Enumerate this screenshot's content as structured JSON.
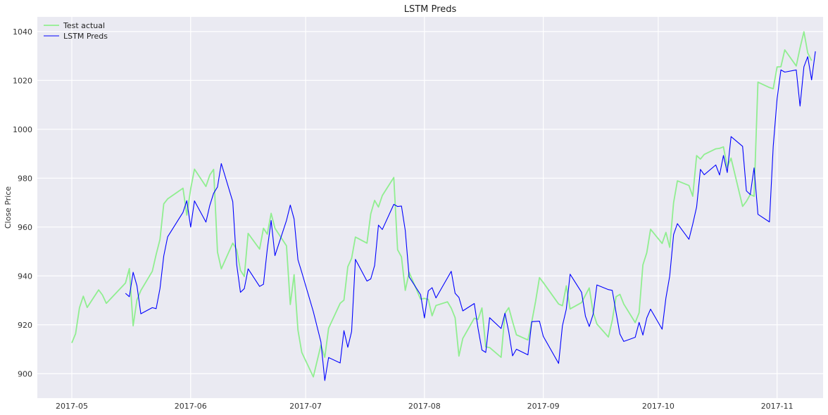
{
  "chart_data": {
    "type": "line",
    "title": "LSTM Preds",
    "xlabel": "",
    "ylabel": "Close Price",
    "xlim": [
      "2017-04-22",
      "2017-11-13"
    ],
    "ylim": [
      890,
      1046
    ],
    "x_ticks": [
      "2017-05-01",
      "2017-06-01",
      "2017-07-01",
      "2017-08-01",
      "2017-09-01",
      "2017-10-01",
      "2017-11-01"
    ],
    "x_tick_labels": [
      "2017-05",
      "2017-06",
      "2017-07",
      "2017-08",
      "2017-09",
      "2017-10",
      "2017-11"
    ],
    "y_ticks": [
      900,
      920,
      940,
      960,
      980,
      1000,
      1020,
      1040
    ],
    "y_tick_labels": [
      "900",
      "920",
      "940",
      "960",
      "980",
      "1000",
      "1020",
      "1040"
    ],
    "grid": true,
    "background": "#eaeaf2",
    "legend_position": "top-left",
    "series": [
      {
        "name": "Test actual",
        "color": "#90ee90",
        "points": [
          [
            "2017-05-01",
            912.6
          ],
          [
            "2017-05-02",
            916.4
          ],
          [
            "2017-05-03",
            927.0
          ],
          [
            "2017-05-04",
            931.7
          ],
          [
            "2017-05-05",
            927.1
          ],
          [
            "2017-05-08",
            934.3
          ],
          [
            "2017-05-09",
            932.2
          ],
          [
            "2017-05-10",
            928.8
          ],
          [
            "2017-05-15",
            937.1
          ],
          [
            "2017-05-16",
            943.0
          ],
          [
            "2017-05-17",
            919.6
          ],
          [
            "2017-05-18",
            930.2
          ],
          [
            "2017-05-19",
            934.0
          ],
          [
            "2017-05-22",
            941.9
          ],
          [
            "2017-05-23",
            948.8
          ],
          [
            "2017-05-24",
            954.9
          ],
          [
            "2017-05-25",
            969.5
          ],
          [
            "2017-05-26",
            971.5
          ],
          [
            "2017-05-30",
            975.9
          ],
          [
            "2017-05-31",
            964.9
          ],
          [
            "2017-06-01",
            975.6
          ],
          [
            "2017-06-02",
            983.7
          ],
          [
            "2017-06-05",
            976.6
          ],
          [
            "2017-06-06",
            981.3
          ],
          [
            "2017-06-07",
            983.6
          ],
          [
            "2017-06-08",
            949.8
          ],
          [
            "2017-06-09",
            942.9
          ],
          [
            "2017-06-12",
            953.4
          ],
          [
            "2017-06-13",
            950.8
          ],
          [
            "2017-06-14",
            942.3
          ],
          [
            "2017-06-15",
            939.8
          ],
          [
            "2017-06-16",
            957.4
          ],
          [
            "2017-06-19",
            951.0
          ],
          [
            "2017-06-20",
            959.5
          ],
          [
            "2017-06-21",
            957.1
          ],
          [
            "2017-06-22",
            965.6
          ],
          [
            "2017-06-23",
            959.5
          ],
          [
            "2017-06-26",
            952.3
          ],
          [
            "2017-06-27",
            928.3
          ],
          [
            "2017-06-28",
            940.5
          ],
          [
            "2017-06-29",
            917.8
          ],
          [
            "2017-06-30",
            908.7
          ],
          [
            "2017-07-03",
            898.7
          ],
          [
            "2017-07-05",
            911.7
          ],
          [
            "2017-07-06",
            906.7
          ],
          [
            "2017-07-07",
            918.6
          ],
          [
            "2017-07-10",
            928.8
          ],
          [
            "2017-07-11",
            930.1
          ],
          [
            "2017-07-12",
            943.8
          ],
          [
            "2017-07-13",
            947.2
          ],
          [
            "2017-07-14",
            955.9
          ],
          [
            "2017-07-17",
            953.4
          ],
          [
            "2017-07-18",
            965.4
          ],
          [
            "2017-07-19",
            970.9
          ],
          [
            "2017-07-20",
            968.2
          ],
          [
            "2017-07-21",
            972.9
          ],
          [
            "2017-07-24",
            980.3
          ],
          [
            "2017-07-25",
            950.7
          ],
          [
            "2017-07-26",
            947.8
          ],
          [
            "2017-07-27",
            934.1
          ],
          [
            "2017-07-28",
            941.5
          ],
          [
            "2017-07-31",
            930.5
          ],
          [
            "2017-08-01",
            930.8
          ],
          [
            "2017-08-02",
            930.4
          ],
          [
            "2017-08-03",
            923.7
          ],
          [
            "2017-08-04",
            927.9
          ],
          [
            "2017-08-07",
            929.4
          ],
          [
            "2017-08-08",
            926.8
          ],
          [
            "2017-08-09",
            922.9
          ],
          [
            "2017-08-10",
            907.2
          ],
          [
            "2017-08-11",
            914.4
          ],
          [
            "2017-08-14",
            922.7
          ],
          [
            "2017-08-15",
            922.2
          ],
          [
            "2017-08-16",
            926.9
          ],
          [
            "2017-08-17",
            910.98
          ],
          [
            "2017-08-18",
            910.7
          ],
          [
            "2017-08-21",
            906.7
          ],
          [
            "2017-08-22",
            924.7
          ],
          [
            "2017-08-23",
            927.0
          ],
          [
            "2017-08-24",
            921.3
          ],
          [
            "2017-08-25",
            915.9
          ],
          [
            "2017-08-28",
            913.8
          ],
          [
            "2017-08-29",
            921.3
          ],
          [
            "2017-08-30",
            929.6
          ],
          [
            "2017-08-31",
            939.3
          ],
          [
            "2017-09-01",
            937.3
          ],
          [
            "2017-09-05",
            928.5
          ],
          [
            "2017-09-06",
            927.8
          ],
          [
            "2017-09-07",
            935.95
          ],
          [
            "2017-09-08",
            926.5
          ],
          [
            "2017-09-11",
            929.1
          ],
          [
            "2017-09-12",
            932.1
          ],
          [
            "2017-09-13",
            935.1
          ],
          [
            "2017-09-14",
            925.1
          ],
          [
            "2017-09-15",
            920.3
          ],
          [
            "2017-09-18",
            915.0
          ],
          [
            "2017-09-19",
            921.8
          ],
          [
            "2017-09-20",
            931.5
          ],
          [
            "2017-09-21",
            932.45
          ],
          [
            "2017-09-22",
            928.5
          ],
          [
            "2017-09-25",
            920.9
          ],
          [
            "2017-09-26",
            924.9
          ],
          [
            "2017-09-27",
            944.5
          ],
          [
            "2017-09-28",
            949.5
          ],
          [
            "2017-09-29",
            959.1
          ],
          [
            "2017-10-02",
            953.3
          ],
          [
            "2017-10-03",
            957.8
          ],
          [
            "2017-10-04",
            951.7
          ],
          [
            "2017-10-05",
            970.0
          ],
          [
            "2017-10-06",
            978.9
          ],
          [
            "2017-10-09",
            977.0
          ],
          [
            "2017-10-10",
            972.6
          ],
          [
            "2017-10-11",
            989.25
          ],
          [
            "2017-10-12",
            987.8
          ],
          [
            "2017-10-13",
            989.7
          ],
          [
            "2017-10-16",
            992.0
          ],
          [
            "2017-10-17",
            992.2
          ],
          [
            "2017-10-18",
            992.8
          ],
          [
            "2017-10-19",
            984.45
          ],
          [
            "2017-10-20",
            988.2
          ],
          [
            "2017-10-23",
            968.45
          ],
          [
            "2017-10-24",
            970.5
          ],
          [
            "2017-10-25",
            973.3
          ],
          [
            "2017-10-26",
            972.6
          ],
          [
            "2017-10-27",
            1019.3
          ],
          [
            "2017-10-30",
            1017.1
          ],
          [
            "2017-10-31",
            1016.6
          ],
          [
            "2017-11-01",
            1025.5
          ],
          [
            "2017-11-02",
            1025.6
          ],
          [
            "2017-11-03",
            1032.5
          ],
          [
            "2017-11-06",
            1025.9
          ],
          [
            "2017-11-07",
            1033.3
          ],
          [
            "2017-11-08",
            1039.9
          ],
          [
            "2017-11-09",
            1031.3
          ],
          [
            "2017-11-10",
            1028.1
          ]
        ]
      },
      {
        "name": "LSTM Preds",
        "color": "#0000ff",
        "points": [
          [
            "2017-05-15",
            932.9
          ],
          [
            "2017-05-16",
            931.5
          ],
          [
            "2017-05-17",
            941.5
          ],
          [
            "2017-05-18",
            936.0
          ],
          [
            "2017-05-19",
            924.5
          ],
          [
            "2017-05-22",
            927.0
          ],
          [
            "2017-05-23",
            926.6
          ],
          [
            "2017-05-24",
            934.8
          ],
          [
            "2017-05-25",
            948.2
          ],
          [
            "2017-05-26",
            956.0
          ],
          [
            "2017-05-30",
            966.0
          ],
          [
            "2017-05-31",
            970.8
          ],
          [
            "2017-06-01",
            960.0
          ],
          [
            "2017-06-02",
            970.7
          ],
          [
            "2017-06-05",
            962.0
          ],
          [
            "2017-06-06",
            968.9
          ],
          [
            "2017-06-07",
            973.8
          ],
          [
            "2017-06-08",
            976.4
          ],
          [
            "2017-06-09",
            986.0
          ],
          [
            "2017-06-12",
            970.4
          ],
          [
            "2017-06-13",
            944.8
          ],
          [
            "2017-06-14",
            933.3
          ],
          [
            "2017-06-15",
            934.8
          ],
          [
            "2017-06-16",
            942.9
          ],
          [
            "2017-06-19",
            935.7
          ],
          [
            "2017-06-20",
            936.6
          ],
          [
            "2017-06-21",
            950.9
          ],
          [
            "2017-06-22",
            962.7
          ],
          [
            "2017-06-23",
            948.3
          ],
          [
            "2017-06-26",
            962.7
          ],
          [
            "2017-06-27",
            969.0
          ],
          [
            "2017-06-28",
            963.3
          ],
          [
            "2017-06-29",
            946.6
          ],
          [
            "2017-06-30",
            941.5
          ],
          [
            "2017-07-03",
            925.4
          ],
          [
            "2017-07-05",
            913.0
          ],
          [
            "2017-07-06",
            897.2
          ],
          [
            "2017-07-07",
            906.6
          ],
          [
            "2017-07-10",
            904.4
          ],
          [
            "2017-07-11",
            917.6
          ],
          [
            "2017-07-12",
            910.8
          ],
          [
            "2017-07-13",
            917.3
          ],
          [
            "2017-07-14",
            946.8
          ],
          [
            "2017-07-17",
            937.9
          ],
          [
            "2017-07-18",
            938.8
          ],
          [
            "2017-07-19",
            944.3
          ],
          [
            "2017-07-20",
            960.8
          ],
          [
            "2017-07-21",
            959.0
          ],
          [
            "2017-07-24",
            969.3
          ],
          [
            "2017-07-25",
            968.4
          ],
          [
            "2017-07-26",
            968.6
          ],
          [
            "2017-07-27",
            958.6
          ],
          [
            "2017-07-28",
            939.6
          ],
          [
            "2017-07-31",
            932.3
          ],
          [
            "2017-08-01",
            922.8
          ],
          [
            "2017-08-02",
            933.9
          ],
          [
            "2017-08-03",
            935.2
          ],
          [
            "2017-08-04",
            931.0
          ],
          [
            "2017-08-07",
            939.2
          ],
          [
            "2017-08-08",
            941.9
          ],
          [
            "2017-08-09",
            932.9
          ],
          [
            "2017-08-10",
            931.2
          ],
          [
            "2017-08-11",
            925.7
          ],
          [
            "2017-08-14",
            928.7
          ],
          [
            "2017-08-15",
            918.5
          ],
          [
            "2017-08-16",
            909.7
          ],
          [
            "2017-08-17",
            908.7
          ],
          [
            "2017-08-18",
            922.9
          ],
          [
            "2017-08-21",
            918.5
          ],
          [
            "2017-08-22",
            924.7
          ],
          [
            "2017-08-23",
            917.1
          ],
          [
            "2017-08-24",
            907.3
          ],
          [
            "2017-08-25",
            910.0
          ],
          [
            "2017-08-28",
            907.7
          ],
          [
            "2017-08-29",
            921.3
          ],
          [
            "2017-08-30",
            921.4
          ],
          [
            "2017-08-31",
            921.5
          ],
          [
            "2017-09-01",
            915.3
          ],
          [
            "2017-09-05",
            904.2
          ],
          [
            "2017-09-06",
            919.6
          ],
          [
            "2017-09-07",
            926.4
          ],
          [
            "2017-09-08",
            940.7
          ],
          [
            "2017-09-11",
            933.3
          ],
          [
            "2017-09-12",
            923.5
          ],
          [
            "2017-09-13",
            919.3
          ],
          [
            "2017-09-14",
            924.3
          ],
          [
            "2017-09-15",
            936.3
          ],
          [
            "2017-09-18",
            934.4
          ],
          [
            "2017-09-19",
            934.1
          ],
          [
            "2017-09-20",
            925.0
          ],
          [
            "2017-09-21",
            916.2
          ],
          [
            "2017-09-22",
            913.2
          ],
          [
            "2017-09-25",
            914.9
          ],
          [
            "2017-09-26",
            921.0
          ],
          [
            "2017-09-27",
            915.8
          ],
          [
            "2017-09-28",
            922.8
          ],
          [
            "2017-09-29",
            926.4
          ],
          [
            "2017-10-02",
            918.2
          ],
          [
            "2017-10-03",
            931.0
          ],
          [
            "2017-10-04",
            940.0
          ],
          [
            "2017-10-05",
            956.9
          ],
          [
            "2017-10-06",
            961.4
          ],
          [
            "2017-10-09",
            955.0
          ],
          [
            "2017-10-10",
            961.2
          ],
          [
            "2017-10-11",
            968.2
          ],
          [
            "2017-10-12",
            983.6
          ],
          [
            "2017-10-13",
            981.4
          ],
          [
            "2017-10-16",
            985.4
          ],
          [
            "2017-10-17",
            981.3
          ],
          [
            "2017-10-18",
            989.3
          ],
          [
            "2017-10-19",
            982.3
          ],
          [
            "2017-10-20",
            997.0
          ],
          [
            "2017-10-23",
            993.0
          ],
          [
            "2017-10-24",
            974.8
          ],
          [
            "2017-10-25",
            973.3
          ],
          [
            "2017-10-26",
            984.2
          ],
          [
            "2017-10-27",
            965.2
          ],
          [
            "2017-10-30",
            962.1
          ],
          [
            "2017-10-31",
            993.0
          ],
          [
            "2017-11-01",
            1012.5
          ],
          [
            "2017-11-02",
            1024.3
          ],
          [
            "2017-11-03",
            1023.4
          ],
          [
            "2017-11-06",
            1024.3
          ],
          [
            "2017-11-07",
            1009.5
          ],
          [
            "2017-11-08",
            1025.6
          ],
          [
            "2017-11-09",
            1029.7
          ],
          [
            "2017-11-10",
            1020.2
          ],
          [
            "2017-11-11",
            1031.9
          ]
        ]
      }
    ]
  }
}
